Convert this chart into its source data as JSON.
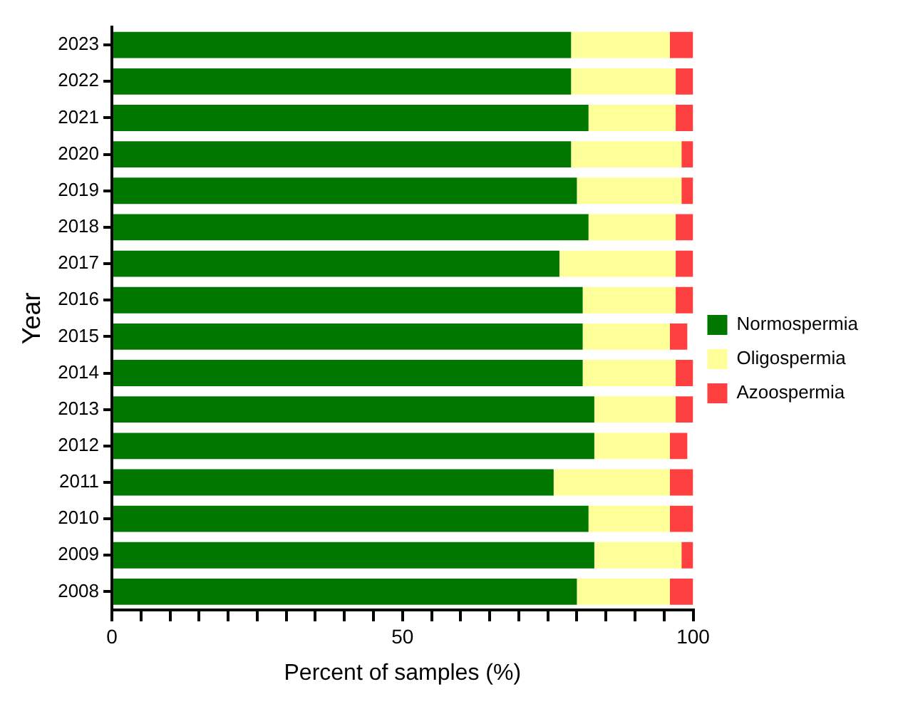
{
  "chart_data": {
    "type": "bar",
    "orientation": "horizontal",
    "stacked": true,
    "xlabel": "Percent of samples (%)",
    "ylabel": "Year",
    "categories": [
      "2023",
      "2022",
      "2021",
      "2020",
      "2019",
      "2018",
      "2017",
      "2016",
      "2015",
      "2014",
      "2013",
      "2012",
      "2011",
      "2010",
      "2009",
      "2008"
    ],
    "series": [
      {
        "name": "Normospermia",
        "color": "#007800",
        "values": [
          79,
          79,
          82,
          79,
          80,
          82,
          77,
          81,
          81,
          81,
          83,
          83,
          76,
          82,
          83,
          80
        ]
      },
      {
        "name": "Oligospermia",
        "color": "#ffff99",
        "values": [
          17,
          18,
          15,
          19,
          18,
          15,
          20,
          16,
          15,
          16,
          14,
          13,
          20,
          14,
          15,
          16
        ]
      },
      {
        "name": "Azoospermia",
        "color": "#ff4040",
        "values": [
          4,
          3,
          3,
          2,
          2,
          3,
          3,
          3,
          3,
          3,
          3,
          3,
          4,
          4,
          2,
          4
        ]
      }
    ],
    "xlim": [
      0,
      100
    ],
    "xticks": [
      0,
      {
        "value": 5,
        "label": null
      },
      {
        "value": 10,
        "label": null
      },
      {
        "value": 15,
        "label": null
      },
      {
        "value": 20,
        "label": null
      },
      {
        "value": 25,
        "label": null
      },
      {
        "value": 30,
        "label": null
      },
      {
        "value": 35,
        "label": null
      },
      {
        "value": 40,
        "label": null
      },
      {
        "value": 45,
        "label": null
      },
      50,
      {
        "value": 55,
        "label": null
      },
      {
        "value": 60,
        "label": null
      },
      {
        "value": 65,
        "label": null
      },
      {
        "value": 70,
        "label": null
      },
      {
        "value": 75,
        "label": null
      },
      {
        "value": 80,
        "label": null
      },
      {
        "value": 85,
        "label": null
      },
      {
        "value": 90,
        "label": null
      },
      {
        "value": 95,
        "label": null
      },
      100
    ],
    "grid": false,
    "legend": "right"
  }
}
